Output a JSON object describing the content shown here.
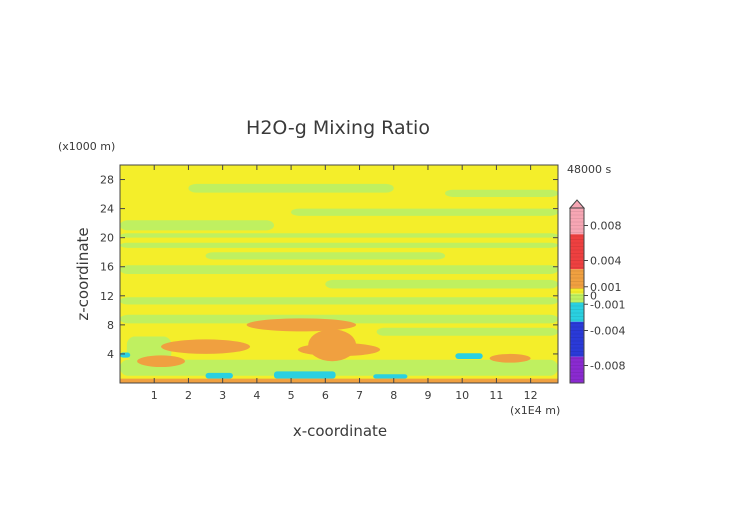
{
  "chart_data": {
    "type": "heatmap",
    "title": "H2O-g Mixing Ratio",
    "xlabel": "x-coordinate",
    "ylabel": "z-coordinate",
    "x_unit": "(x1E4 m)",
    "y_unit": "(x1000 m)",
    "time_label": "48000 s",
    "xlim": [
      0,
      12.8
    ],
    "ylim": [
      0,
      30
    ],
    "x_ticks": [
      1,
      2,
      3,
      4,
      5,
      6,
      7,
      8,
      9,
      10,
      11,
      12
    ],
    "y_ticks": [
      4,
      8,
      12,
      16,
      20,
      24,
      28
    ],
    "colorbar": {
      "labels": [
        {
          "text": "0.008",
          "value": 0.008
        },
        {
          "text": "0.004",
          "value": 0.004
        },
        {
          "text": "0.001",
          "value": 0.001
        },
        {
          "text": "0",
          "value": 0
        },
        {
          "text": "-0.001",
          "value": -0.001
        },
        {
          "text": "-0.004",
          "value": -0.004
        },
        {
          "text": "-0.008",
          "value": -0.008
        }
      ],
      "range": [
        -0.01,
        0.01
      ],
      "colors": {
        "pink_top": "#f7a6b4",
        "red": "#ee4040",
        "orange": "#f0a040",
        "yellow": "#f4ee2a",
        "light_green": "#bff060",
        "cyan": "#2ad0e0",
        "blue": "#2a3ad8",
        "purple": "#8a2ad0",
        "magenta": "#ff30c0"
      }
    },
    "field_description_regions": {
      "background": "yellow",
      "bands": "light_green",
      "low_level_maxima": "orange",
      "near_surface_minima": "cyan"
    }
  }
}
